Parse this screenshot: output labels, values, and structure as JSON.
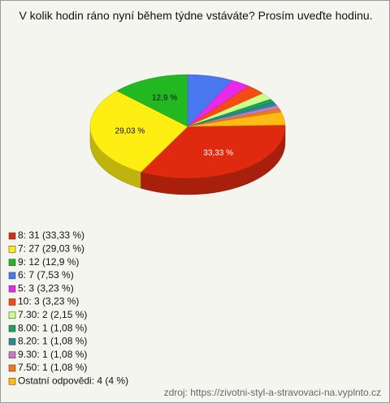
{
  "chart_data": {
    "type": "pie",
    "title": "V kolik hodin ráno nyní během týdne vstáváte? Prosím uveďte hodinu.",
    "categories": [
      "8: 31 (33,33 %)",
      "7: 27 (29,03 %)",
      "9: 12 (12,9 %)",
      "6: 7 (7,53 %)",
      "5: 3 (3,23 %)",
      "10: 3 (3,23 %)",
      "7.30: 2 (2,15 %)",
      "8.00: 1 (1,08 %)",
      "8.20: 1 (1,08 %)",
      "9.30: 1 (1,08 %)",
      "7.50: 1 (1,08 %)",
      "Ostatní odpovědi: 4 (4 %)"
    ],
    "values": [
      33.33,
      29.03,
      12.9,
      7.53,
      3.23,
      3.23,
      2.15,
      1.08,
      1.08,
      1.08,
      1.08,
      4
    ],
    "value_labels": [
      "33,33 %",
      "29,03 %",
      "12,9 %",
      null,
      null,
      null,
      null,
      null,
      null,
      null,
      null,
      null
    ],
    "colors": [
      "#e02a10",
      "#ffee11",
      "#22b822",
      "#4a78f0",
      "#e82ae8",
      "#f44a14",
      "#ccff88",
      "#1f9f60",
      "#248c8c",
      "#c878c8",
      "#f07a1a",
      "#ffbb11"
    ],
    "source": "zdroj: https://zivotni-styl-a-stravovaci-na.vyplnto.cz"
  }
}
